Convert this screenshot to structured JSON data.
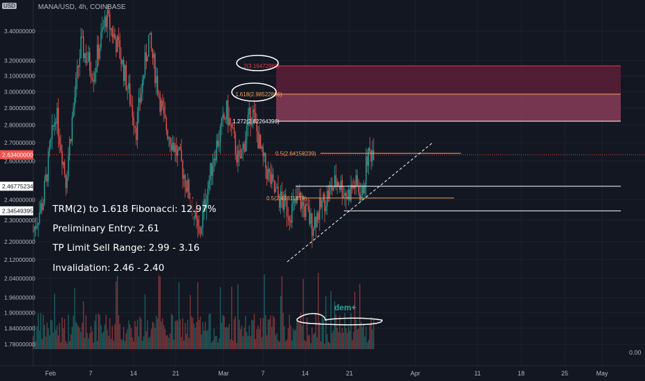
{
  "header": {
    "symbol": "MANA/USD, 4h, COINBASE",
    "currency_badge": "USD"
  },
  "notes": [
    "TRM(2) to 1.618 Fibonacci: 12.97%",
    "Preliminary Entry: 2.61",
    "TP Limit Sell Range: 2.99 - 3.16",
    "Invalidation: 2.46 - 2.40"
  ],
  "watermark": "dem+",
  "volume_zero_label": "0.00",
  "colors": {
    "background": "#131722",
    "axis_text": "#b2b5be",
    "up": "#26a69a",
    "down": "#ef5350",
    "fib_orange": "#f7a35c",
    "zone_upper": "#5a1f37",
    "zone_lower": "#8a3c58",
    "zone_label_red": "#f23645"
  },
  "chart_data": {
    "type": "candlestick",
    "scale": "log",
    "ylim": [
      1.76,
      3.6
    ],
    "y_ticks": [
      "3.40000000",
      "3.20000000",
      "3.10000000",
      "3.00000000",
      "2.90000000",
      "2.80000000",
      "2.70000000",
      "2.60000000",
      "2.40000000",
      "2.30000000",
      "2.20000000",
      "2.12000000",
      "2.04000000",
      "1.96000000",
      "1.90000000",
      "1.84000000",
      "1.78000000"
    ],
    "y_tick_values": [
      3.4,
      3.2,
      3.1,
      3.0,
      2.9,
      2.8,
      2.7,
      2.6,
      2.4,
      2.3,
      2.2,
      2.12,
      2.04,
      1.96,
      1.9,
      1.84,
      1.78
    ],
    "price_badges": [
      {
        "label": "2.63400000",
        "value": 2.634,
        "color": "#ef5350"
      },
      {
        "label": "2.46775234",
        "value": 2.46775,
        "color": "#ffffff"
      },
      {
        "label": "2.34549395",
        "value": 2.34549,
        "color": "#ffffff"
      }
    ],
    "x_ticks": [
      "Feb",
      "7",
      "14",
      "21",
      "Mar",
      "7",
      "14",
      "21",
      "Apr",
      "11",
      "18",
      "25",
      "May"
    ],
    "fib_levels": [
      {
        "label": "2(3.16472968)",
        "value": 3.16473,
        "color": "#f23645"
      },
      {
        "label": "1.618(2.98522866)",
        "value": 2.98523,
        "color": "#f7a35c"
      },
      {
        "label": "1.272(2.82264396)",
        "value": 2.82264,
        "color": "#ffffff"
      },
      {
        "label": "0.5(2.64158239)",
        "value": 2.64158,
        "color": "#f7a35c"
      },
      {
        "label": "0.5(2.40811679)",
        "value": 2.40812,
        "color": "#f7a35c"
      }
    ],
    "horizontal_lines": [
      2.46775,
      2.34549
    ],
    "keypoints": [
      {
        "t": 0,
        "p": 2.25
      },
      {
        "t": 8,
        "p": 2.4
      },
      {
        "t": 18,
        "p": 2.88
      },
      {
        "t": 26,
        "p": 2.5
      },
      {
        "t": 38,
        "p": 3.3
      },
      {
        "t": 48,
        "p": 3.12
      },
      {
        "t": 58,
        "p": 3.5
      },
      {
        "t": 68,
        "p": 3.28
      },
      {
        "t": 82,
        "p": 2.78
      },
      {
        "t": 92,
        "p": 3.35
      },
      {
        "t": 104,
        "p": 2.82
      },
      {
        "t": 118,
        "p": 2.58
      },
      {
        "t": 132,
        "p": 2.22
      },
      {
        "t": 144,
        "p": 2.64
      },
      {
        "t": 154,
        "p": 2.88
      },
      {
        "t": 164,
        "p": 2.58
      },
      {
        "t": 174,
        "p": 2.9
      },
      {
        "t": 182,
        "p": 2.62
      },
      {
        "t": 192,
        "p": 2.44
      },
      {
        "t": 204,
        "p": 2.34
      },
      {
        "t": 212,
        "p": 2.4
      },
      {
        "t": 222,
        "p": 2.28
      },
      {
        "t": 232,
        "p": 2.4
      },
      {
        "t": 242,
        "p": 2.5
      },
      {
        "t": 250,
        "p": 2.42
      },
      {
        "t": 256,
        "p": 2.48
      },
      {
        "t": 262,
        "p": 2.42
      },
      {
        "t": 266,
        "p": 2.62
      },
      {
        "t": 272,
        "p": 2.68
      }
    ],
    "candle_count": 272,
    "projection_end_ticks": 440
  }
}
